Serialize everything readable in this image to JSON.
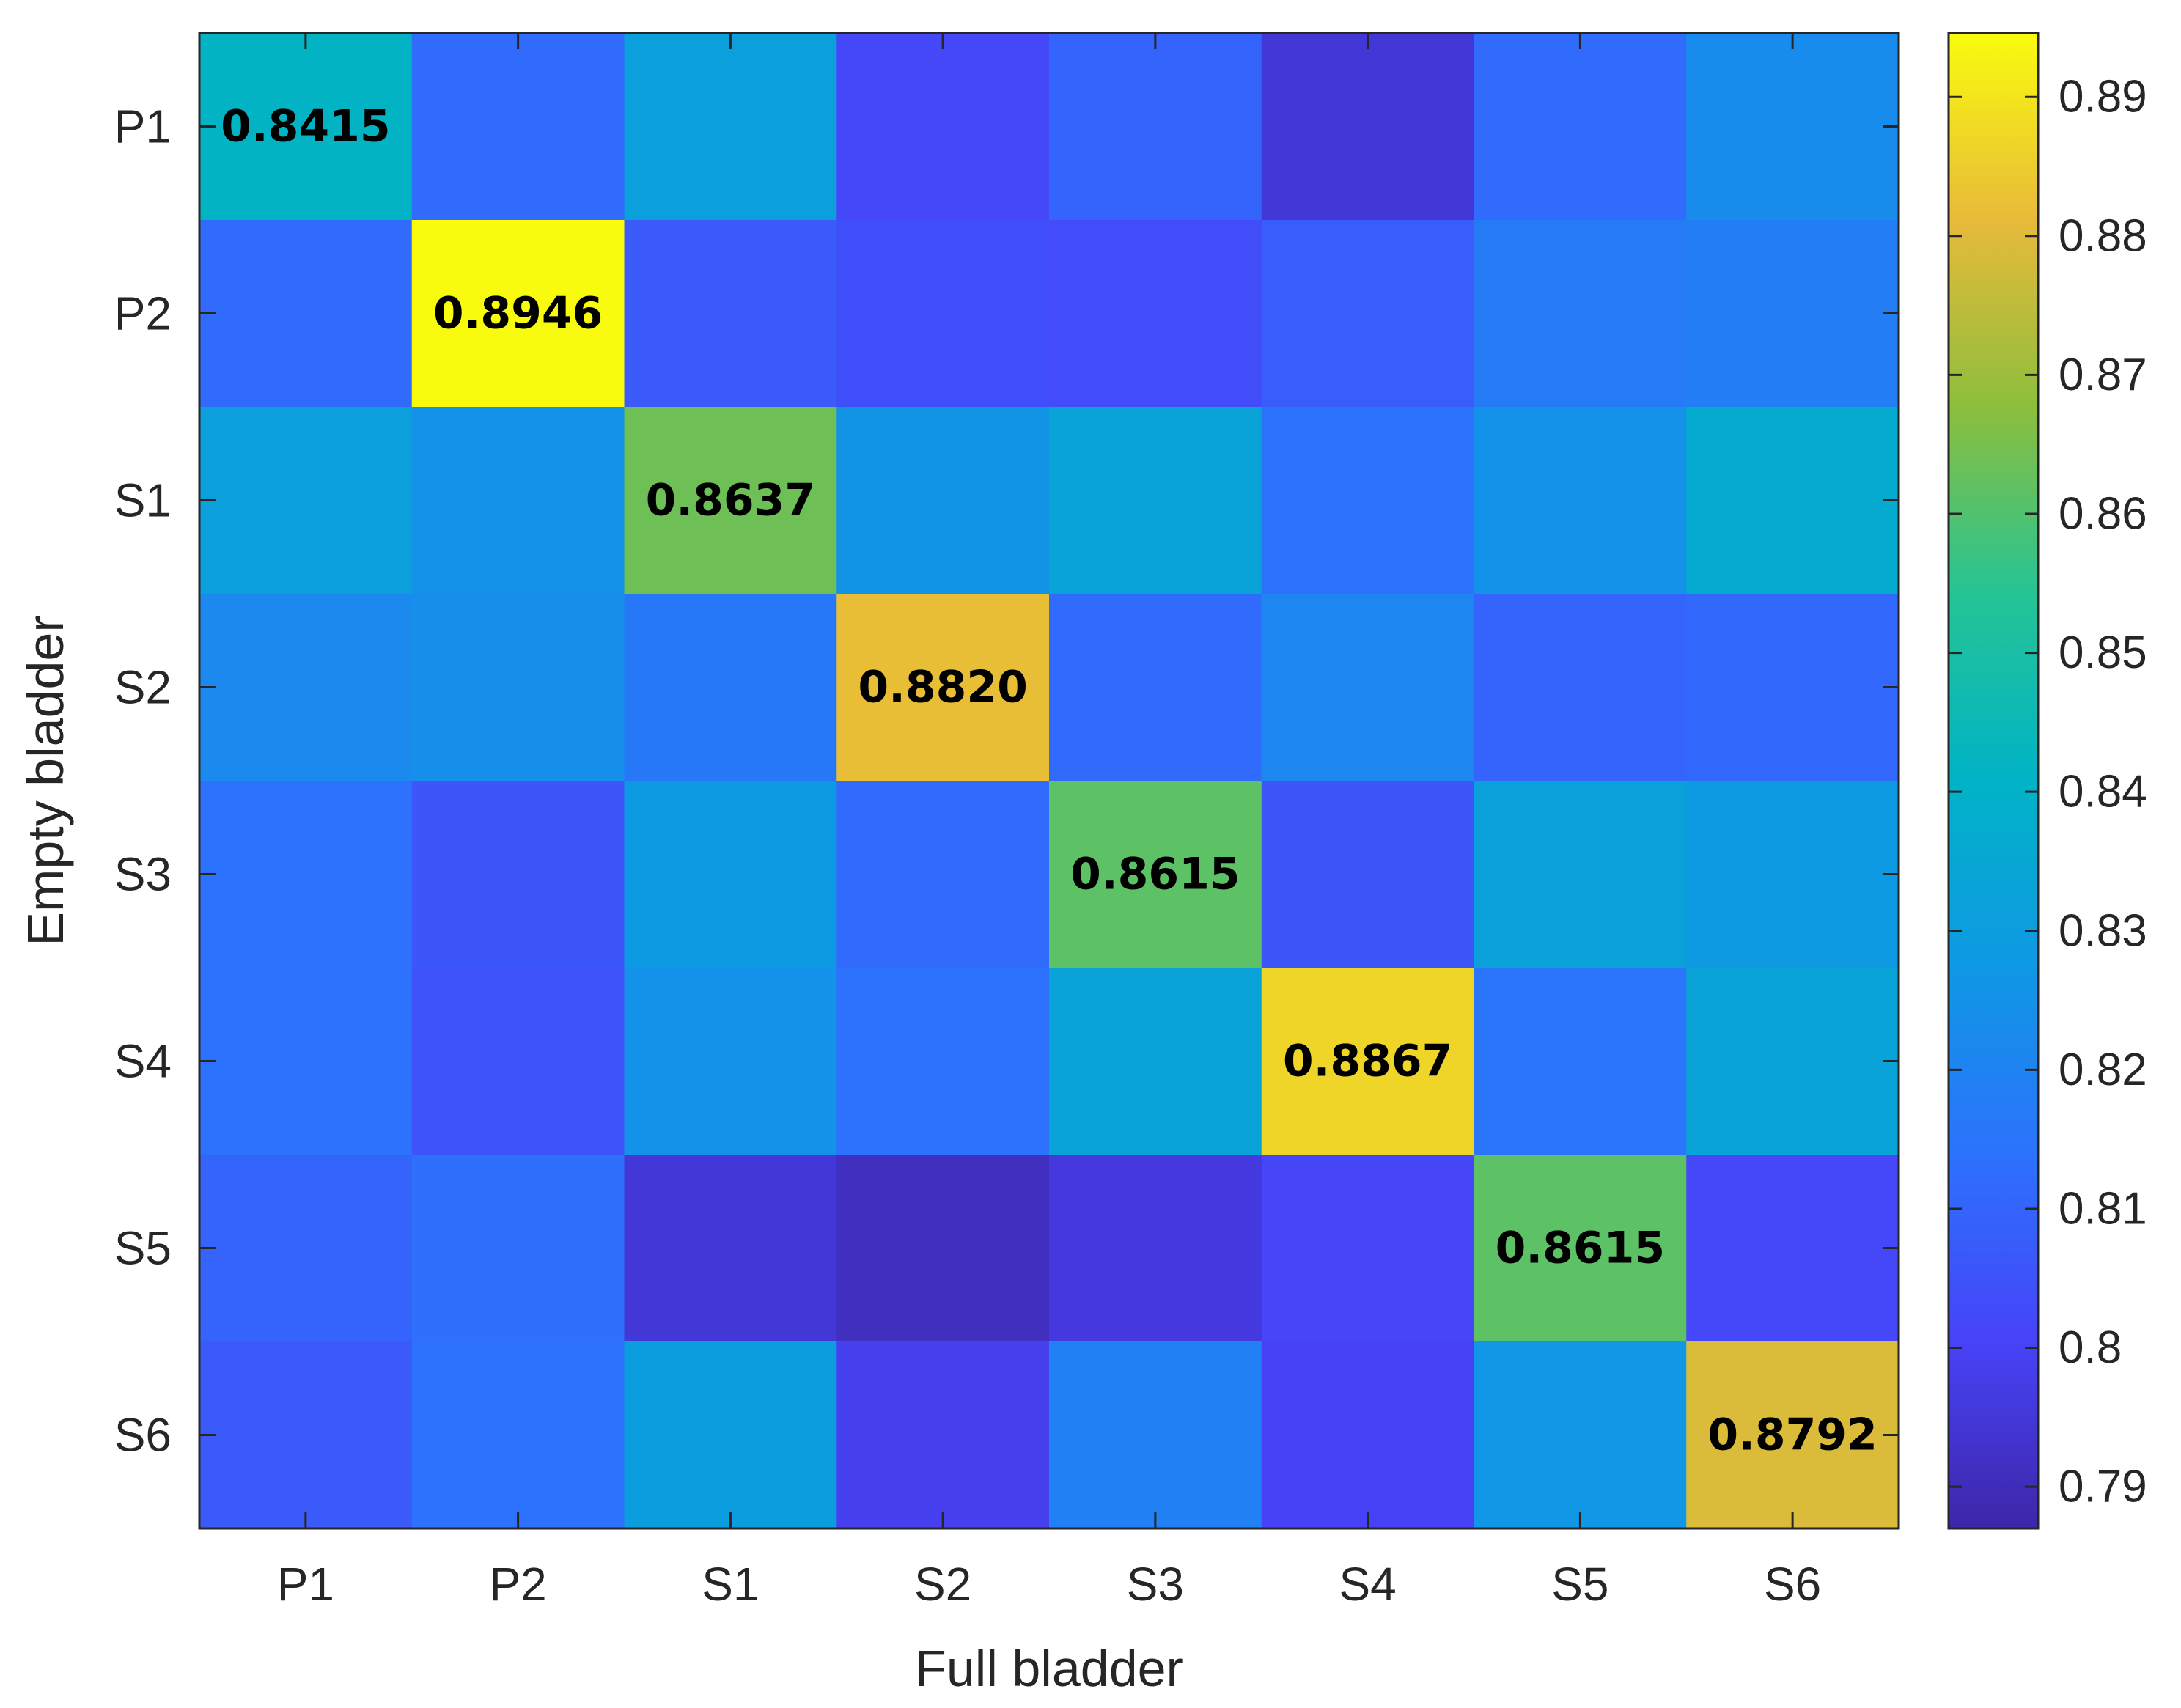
{
  "chart_data": {
    "type": "heatmap",
    "title": "",
    "xlabel": "Full bladder",
    "ylabel": "Empty bladder",
    "x_categories": [
      "P1",
      "P2",
      "S1",
      "S2",
      "S3",
      "S4",
      "S5",
      "S6"
    ],
    "y_categories": [
      "P1",
      "P2",
      "S1",
      "S2",
      "S3",
      "S4",
      "S5",
      "S6"
    ],
    "values": [
      [
        0.8415,
        0.812,
        0.831,
        0.802,
        0.81,
        0.795,
        0.812,
        0.823
      ],
      [
        0.812,
        0.8946,
        0.807,
        0.804,
        0.803,
        0.808,
        0.817,
        0.818
      ],
      [
        0.831,
        0.825,
        0.8637,
        0.826,
        0.833,
        0.814,
        0.825,
        0.837
      ],
      [
        0.822,
        0.824,
        0.816,
        0.882,
        0.812,
        0.821,
        0.81,
        0.811
      ],
      [
        0.814,
        0.806,
        0.828,
        0.812,
        0.8615,
        0.806,
        0.832,
        0.828
      ],
      [
        0.814,
        0.805,
        0.825,
        0.814,
        0.833,
        0.8867,
        0.815,
        0.833
      ],
      [
        0.81,
        0.813,
        0.795,
        0.791,
        0.796,
        0.801,
        0.8615,
        0.802
      ],
      [
        0.807,
        0.814,
        0.83,
        0.799,
        0.819,
        0.8,
        0.827,
        0.8792
      ]
    ],
    "annotations": [
      {
        "row": 0,
        "col": 0,
        "text": "0.8415"
      },
      {
        "row": 1,
        "col": 1,
        "text": "0.8946"
      },
      {
        "row": 2,
        "col": 2,
        "text": "0.8637"
      },
      {
        "row": 3,
        "col": 3,
        "text": "0.8820"
      },
      {
        "row": 4,
        "col": 4,
        "text": "0.8615"
      },
      {
        "row": 5,
        "col": 5,
        "text": "0.8867"
      },
      {
        "row": 6,
        "col": 6,
        "text": "0.8615"
      },
      {
        "row": 7,
        "col": 7,
        "text": "0.8792"
      }
    ],
    "colorbar": {
      "colormap": "parula",
      "range": [
        0.787,
        0.8946
      ],
      "ticks": [
        0.79,
        0.8,
        0.81,
        0.82,
        0.83,
        0.84,
        0.85,
        0.86,
        0.87,
        0.88,
        0.89
      ],
      "tick_labels": [
        "0.79",
        "0.8",
        "0.81",
        "0.82",
        "0.83",
        "0.84",
        "0.85",
        "0.86",
        "0.87",
        "0.88",
        "0.89"
      ],
      "position": "right"
    }
  }
}
